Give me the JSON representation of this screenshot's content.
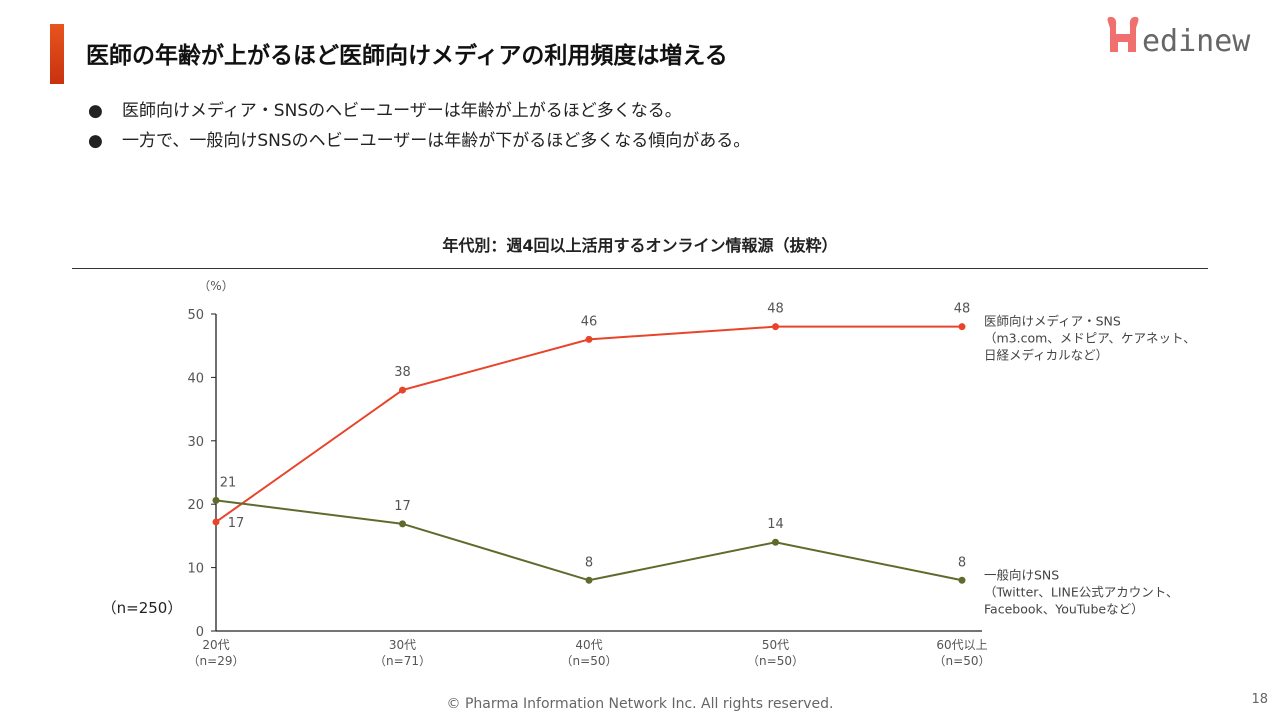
{
  "header": {
    "title": "医師の年齢が上がるほど医師向けメディアの利用頻度は増える",
    "logo_text": "Medinew",
    "accent_color": "#e04a1a"
  },
  "bullets": [
    "医師向けメディア・SNSのヘビーユーザーは年齢が上がるほど多くなる。",
    "一方で、一般向けSNSのヘビーユーザーは年齢が下がるほど多くなる傾向がある。"
  ],
  "bullet_glyph": "●",
  "chart_data": {
    "type": "line",
    "title": "年代別：週4回以上活用するオンライン情報源（抜粋）",
    "ylabel": "（%）",
    "sample_note": "（n=250）",
    "ylim": [
      0,
      50
    ],
    "yticks": [
      0,
      10,
      20,
      30,
      40,
      50
    ],
    "categories": [
      [
        "20代",
        "（n=29）"
      ],
      [
        "30代",
        "（n=71）"
      ],
      [
        "40代",
        "（n=50）"
      ],
      [
        "50代",
        "（n=50）"
      ],
      [
        "60代以上",
        "（n=50）"
      ]
    ],
    "grid": false,
    "legend": "right-inline",
    "series": [
      {
        "name": "医師向けメディア・SNS",
        "name_lines": [
          "医師向けメディア・SNS",
          "（m3.com、メドピア、ケアネット、",
          "日経メディカルなど）"
        ],
        "color": "#e8442a",
        "values": [
          17.2,
          38,
          46,
          48,
          48
        ],
        "labels": [
          "17",
          "38",
          "46",
          "48",
          "48"
        ]
      },
      {
        "name": "一般向けSNS",
        "name_lines": [
          "一般向けSNS",
          "（Twitter、LINE公式アカウント、",
          "Facebook、YouTubeなど）"
        ],
        "color": "#5e6b2c",
        "values": [
          20.6,
          16.9,
          8,
          14,
          8
        ],
        "labels": [
          "21",
          "17",
          "8",
          "14",
          "8"
        ]
      }
    ]
  },
  "footer": {
    "copyright": "© Pharma Information Network Inc.  All rights reserved.",
    "page_number": "18"
  }
}
